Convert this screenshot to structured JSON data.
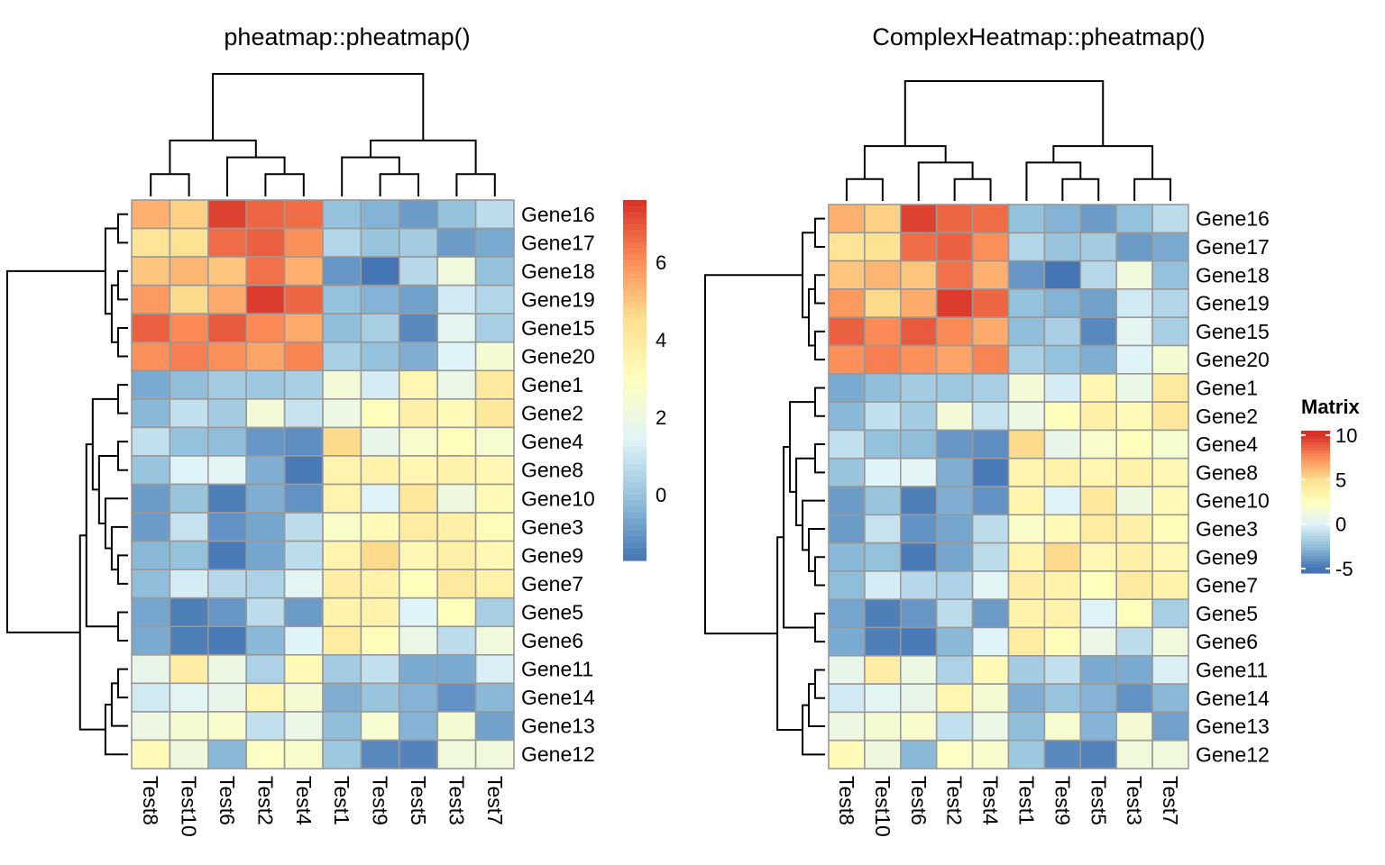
{
  "chart_data": [
    {
      "type": "heatmap",
      "title": "pheatmap::pheatmap()",
      "rows": [
        "Gene16",
        "Gene17",
        "Gene18",
        "Gene19",
        "Gene15",
        "Gene20",
        "Gene1",
        "Gene2",
        "Gene4",
        "Gene8",
        "Gene10",
        "Gene3",
        "Gene9",
        "Gene7",
        "Gene5",
        "Gene6",
        "Gene11",
        "Gene14",
        "Gene13",
        "Gene12"
      ],
      "columns": [
        "Test8",
        "Test10",
        "Test6",
        "Test2",
        "Test4",
        "Test1",
        "Test9",
        "Test5",
        "Test3",
        "Test7"
      ],
      "values": [
        [
          5.4,
          4.8,
          7.3,
          6.7,
          6.6,
          -0.1,
          -0.4,
          -0.9,
          -0.1,
          0.7
        ],
        [
          4.3,
          4.4,
          6.6,
          6.8,
          6.0,
          0.5,
          0.0,
          0.2,
          -0.9,
          -0.6
        ],
        [
          5.0,
          5.3,
          5.0,
          6.5,
          5.4,
          -1.0,
          -1.7,
          0.6,
          2.2,
          -0.1
        ],
        [
          5.8,
          4.6,
          5.5,
          7.4,
          6.7,
          -0.1,
          -0.4,
          -0.8,
          1.1,
          0.5
        ],
        [
          6.8,
          6.1,
          6.9,
          6.1,
          5.5,
          -0.2,
          0.3,
          -1.3,
          1.6,
          0.3
        ],
        [
          6.0,
          6.3,
          6.0,
          5.6,
          6.2,
          0.3,
          -0.1,
          -0.5,
          1.4,
          2.4
        ],
        [
          -0.6,
          -0.2,
          0.2,
          0.1,
          0.3,
          2.3,
          1.2,
          3.4,
          1.9,
          4.0
        ],
        [
          -0.3,
          0.8,
          0.2,
          2.3,
          0.9,
          2.0,
          3.0,
          3.7,
          3.2,
          4.1
        ],
        [
          0.8,
          -0.1,
          -0.2,
          -1.0,
          -1.2,
          4.6,
          1.8,
          2.6,
          3.0,
          2.5
        ],
        [
          0.0,
          1.4,
          1.5,
          -0.5,
          -1.6,
          3.5,
          3.6,
          3.4,
          3.6,
          3.3
        ],
        [
          -0.9,
          0.0,
          -1.5,
          -0.5,
          -1.1,
          3.5,
          1.4,
          4.1,
          2.1,
          3.2
        ],
        [
          -0.9,
          0.9,
          -1.1,
          -0.7,
          0.7,
          2.7,
          3.2,
          3.9,
          3.7,
          3.1
        ],
        [
          -0.3,
          -0.1,
          -1.6,
          -0.7,
          0.7,
          3.5,
          4.6,
          3.3,
          3.7,
          3.3
        ],
        [
          -0.2,
          1.2,
          0.6,
          0.4,
          1.5,
          3.8,
          3.6,
          3.0,
          4.0,
          3.6
        ],
        [
          -0.7,
          -1.5,
          -1.0,
          0.7,
          -0.9,
          3.6,
          3.6,
          1.4,
          3.0,
          0.3
        ],
        [
          -0.6,
          -1.5,
          -1.6,
          -0.3,
          1.4,
          3.9,
          3.1,
          1.9,
          0.7,
          2.2
        ],
        [
          1.8,
          3.8,
          2.0,
          0.4,
          3.2,
          0.2,
          0.8,
          -0.6,
          -0.6,
          1.3
        ],
        [
          1.1,
          1.5,
          1.8,
          3.4,
          2.4,
          -0.5,
          0.0,
          -0.4,
          -1.1,
          -0.3
        ],
        [
          2.0,
          2.4,
          2.6,
          0.8,
          1.9,
          -0.2,
          2.5,
          -0.4,
          2.4,
          -0.8
        ],
        [
          3.2,
          2.1,
          -0.3,
          2.8,
          2.6,
          0.1,
          -1.3,
          -1.4,
          2.2,
          2.2
        ]
      ],
      "legend": {
        "ticks": [
          "6",
          "4",
          "2",
          "0"
        ],
        "tick_values": [
          6,
          4,
          2,
          0
        ],
        "range": [
          -1.7,
          7.6
        ]
      }
    },
    {
      "type": "heatmap",
      "title": "ComplexHeatmap::pheatmap()",
      "rows": [
        "Gene16",
        "Gene17",
        "Gene18",
        "Gene19",
        "Gene15",
        "Gene20",
        "Gene1",
        "Gene2",
        "Gene4",
        "Gene8",
        "Gene10",
        "Gene3",
        "Gene9",
        "Gene7",
        "Gene5",
        "Gene6",
        "Gene11",
        "Gene14",
        "Gene13",
        "Gene12"
      ],
      "columns": [
        "Test8",
        "Test10",
        "Test6",
        "Test2",
        "Test4",
        "Test1",
        "Test9",
        "Test5",
        "Test3",
        "Test7"
      ],
      "values": "same as first heatmap",
      "legend": {
        "title": "Matrix",
        "ticks": [
          "10",
          "5",
          "0",
          "-5"
        ],
        "tick_values": [
          10,
          5,
          0,
          -5
        ],
        "range": [
          -5.5,
          10.5
        ]
      }
    }
  ],
  "colors": [
    "#4575B4",
    "#91BFDB",
    "#E0F3F8",
    "#FFFFBF",
    "#FEE090",
    "#FC8D59",
    "#D73027"
  ],
  "cell_border_color": "#999999"
}
